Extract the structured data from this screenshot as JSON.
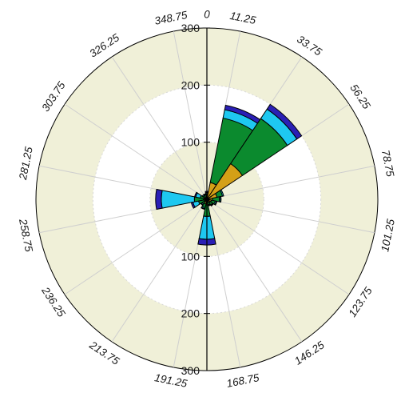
{
  "chart_data": {
    "type": "wind-rose",
    "title": "",
    "radial_max": 300,
    "radial_ticks": [
      100,
      200,
      300
    ],
    "radial_tick_labels": [
      "100",
      "200",
      "300"
    ],
    "direction_labels": [
      "0",
      "11.25",
      "33.75",
      "56.25",
      "78.75",
      "101.25",
      "123.75",
      "146.25",
      "168.75",
      "191.25",
      "213.75",
      "236.25",
      "258.75",
      "281.25",
      "303.75",
      "326.25",
      "348.75"
    ],
    "direction_angles": [
      0,
      11.25,
      33.75,
      56.25,
      78.75,
      101.25,
      123.75,
      146.25,
      168.75,
      191.25,
      213.75,
      236.25,
      258.75,
      281.25,
      303.75,
      326.25,
      348.75
    ],
    "sector_width_deg": 22.5,
    "directions": [
      0,
      22.5,
      45,
      67.5,
      90,
      112.5,
      135,
      157.5,
      180,
      202.5,
      225,
      247.5,
      270,
      292.5,
      315,
      337.5
    ],
    "series": [
      {
        "color": "#000000",
        "cumulative": [
          2,
          3,
          3,
          3,
          3,
          3,
          3,
          2,
          3,
          3,
          3,
          3,
          3,
          3,
          2,
          2
        ]
      },
      {
        "color": "#d4a017",
        "cumulative": [
          8,
          30,
          75,
          18,
          10,
          8,
          7,
          5,
          10,
          8,
          5,
          5,
          6,
          5,
          4,
          3
        ]
      },
      {
        "color": "#0b8a2e",
        "cumulative": [
          10,
          145,
          170,
          28,
          22,
          15,
          12,
          10,
          30,
          15,
          10,
          15,
          22,
          12,
          8,
          8
        ]
      },
      {
        "color": "#1ec8f0",
        "cumulative": [
          12,
          160,
          190,
          30,
          24,
          17,
          13,
          11,
          70,
          17,
          12,
          25,
          80,
          20,
          10,
          9
        ]
      },
      {
        "color": "#2a1fb5",
        "cumulative": [
          14,
          168,
          200,
          30,
          25,
          18,
          14,
          12,
          80,
          18,
          13,
          28,
          90,
          22,
          10,
          10
        ]
      }
    ],
    "band_colors": [
      "#f0f0d8",
      "#ffffff",
      "#f0f0d8"
    ],
    "grid": true
  }
}
